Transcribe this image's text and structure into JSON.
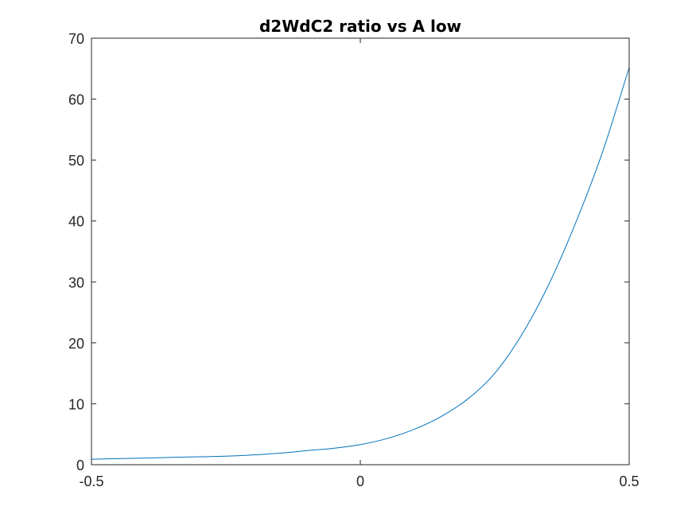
{
  "chart_data": {
    "type": "line",
    "title": "d2WdC2 ratio vs A low",
    "xlabel": "",
    "ylabel": "",
    "xlim": [
      -0.5,
      0.5
    ],
    "ylim": [
      0,
      70
    ],
    "xticks": [
      -0.5,
      0,
      0.5
    ],
    "xtick_labels": [
      "-0.5",
      "0",
      "0.5"
    ],
    "yticks": [
      0,
      10,
      20,
      30,
      40,
      50,
      60,
      70
    ],
    "ytick_labels": [
      "0",
      "10",
      "20",
      "30",
      "40",
      "50",
      "60",
      "70"
    ],
    "grid": false,
    "series": [
      {
        "x": [
          -0.5,
          -0.45,
          -0.4,
          -0.35,
          -0.3,
          -0.25,
          -0.2,
          -0.15,
          -0.1,
          -0.05,
          0,
          0.05,
          0.1,
          0.15,
          0.2,
          0.25,
          0.3,
          0.35,
          0.4,
          0.45,
          0.5
        ],
        "y": [
          0.9,
          1.0,
          1.1,
          1.2,
          1.3,
          1.4,
          1.6,
          1.9,
          2.3,
          2.7,
          3.3,
          4.3,
          5.8,
          7.9,
          10.8,
          15.0,
          21.3,
          29.5,
          39.6,
          51.2,
          65.2
        ],
        "color": "#0072BD"
      }
    ]
  }
}
